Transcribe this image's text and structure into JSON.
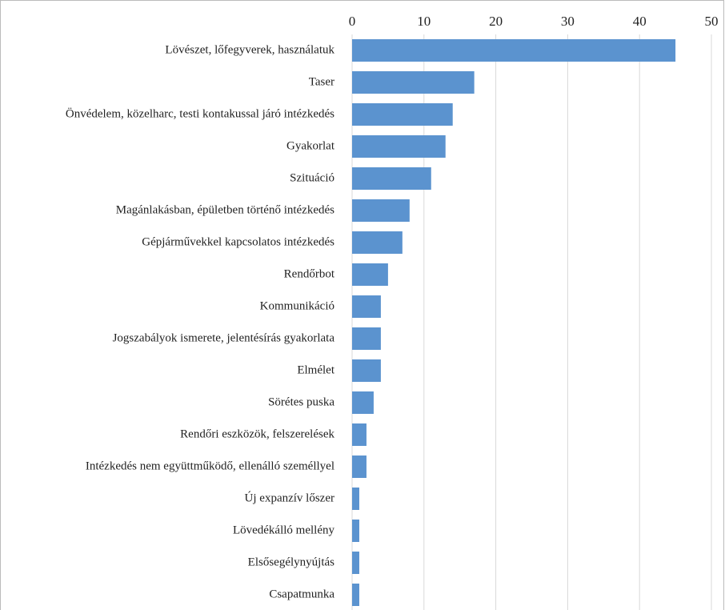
{
  "chart_data": {
    "type": "bar",
    "orientation": "horizontal",
    "categories": [
      "Lövészet, lőfegyverek, használatuk",
      "Taser",
      "Önvédelem, közelharc, testi kontakussal járó intézkedés",
      "Gyakorlat",
      "Szituáció",
      "Magánlakásban, épületben történő intézkedés",
      "Gépjárművekkel kapcsolatos intézkedés",
      "Rendőrbot",
      "Kommunikáció",
      "Jogszabályok ismerete, jelentésírás gyakorlata",
      "Elmélet",
      "Sörétes puska",
      "Rendőri eszközök, felszerelések",
      "Intézkedés nem együttműködő, ellenálló személlyel",
      "Új expanzív lőszer",
      "Lövedékálló mellény",
      "Elsősegélynyújtás",
      "Csapatmunka"
    ],
    "values": [
      45,
      17,
      14,
      13,
      11,
      8,
      7,
      5,
      4,
      4,
      4,
      3,
      2,
      2,
      1,
      1,
      1,
      1
    ],
    "color": "#5b93cf",
    "xlim": [
      0,
      50
    ],
    "xticks": [
      0,
      10,
      20,
      30,
      40,
      50
    ],
    "grid": true
  }
}
